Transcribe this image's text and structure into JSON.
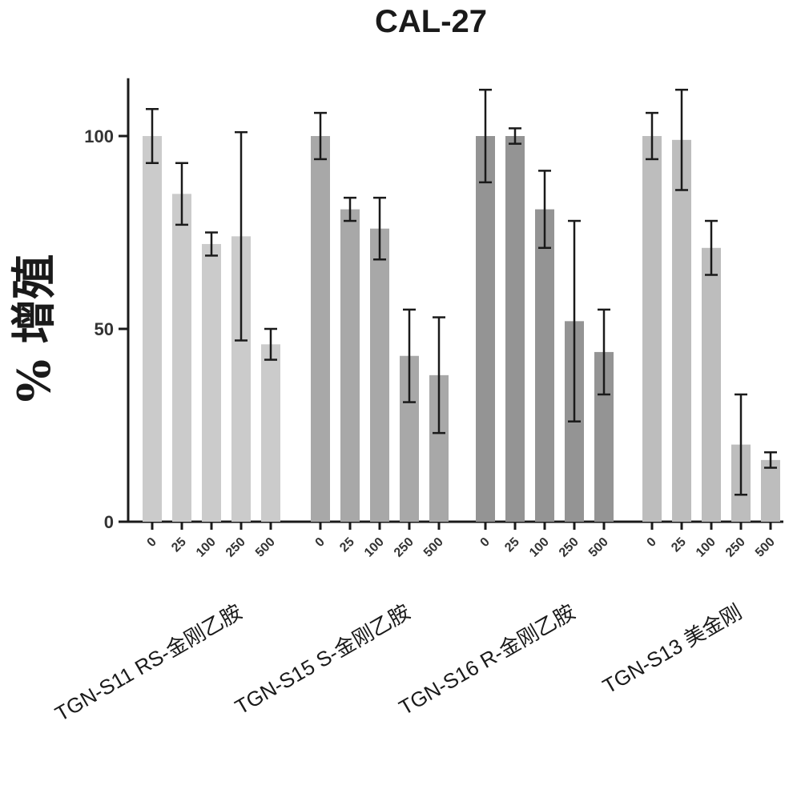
{
  "chart_data": {
    "type": "bar",
    "title": "CAL-27",
    "ylabel": "% 增殖",
    "ylim": [
      0,
      115
    ],
    "yticks": [
      0,
      50,
      100
    ],
    "grid": false,
    "categories": [
      "0",
      "25",
      "100",
      "250",
      "500"
    ],
    "groups": [
      {
        "label": "TGN-S11 RS-金刚乙胺",
        "color": "#cbcbcb",
        "values": [
          100,
          85,
          72,
          74,
          46
        ],
        "errors": [
          7,
          8,
          3,
          27,
          4
        ]
      },
      {
        "label": "TGN-S15 S-金刚乙胺",
        "color": "#a8a8a8",
        "values": [
          100,
          81,
          76,
          43,
          38
        ],
        "errors": [
          6,
          3,
          8,
          12,
          15
        ]
      },
      {
        "label": "TGN-S16 R-金刚乙胺",
        "color": "#949494",
        "values": [
          100,
          100,
          81,
          52,
          44
        ],
        "errors": [
          12,
          2,
          10,
          26,
          11
        ]
      },
      {
        "label": "TGN-S13 美金刚",
        "color": "#bdbdbd",
        "values": [
          100,
          99,
          71,
          20,
          16
        ],
        "errors": [
          6,
          13,
          7,
          13,
          2
        ]
      }
    ]
  }
}
